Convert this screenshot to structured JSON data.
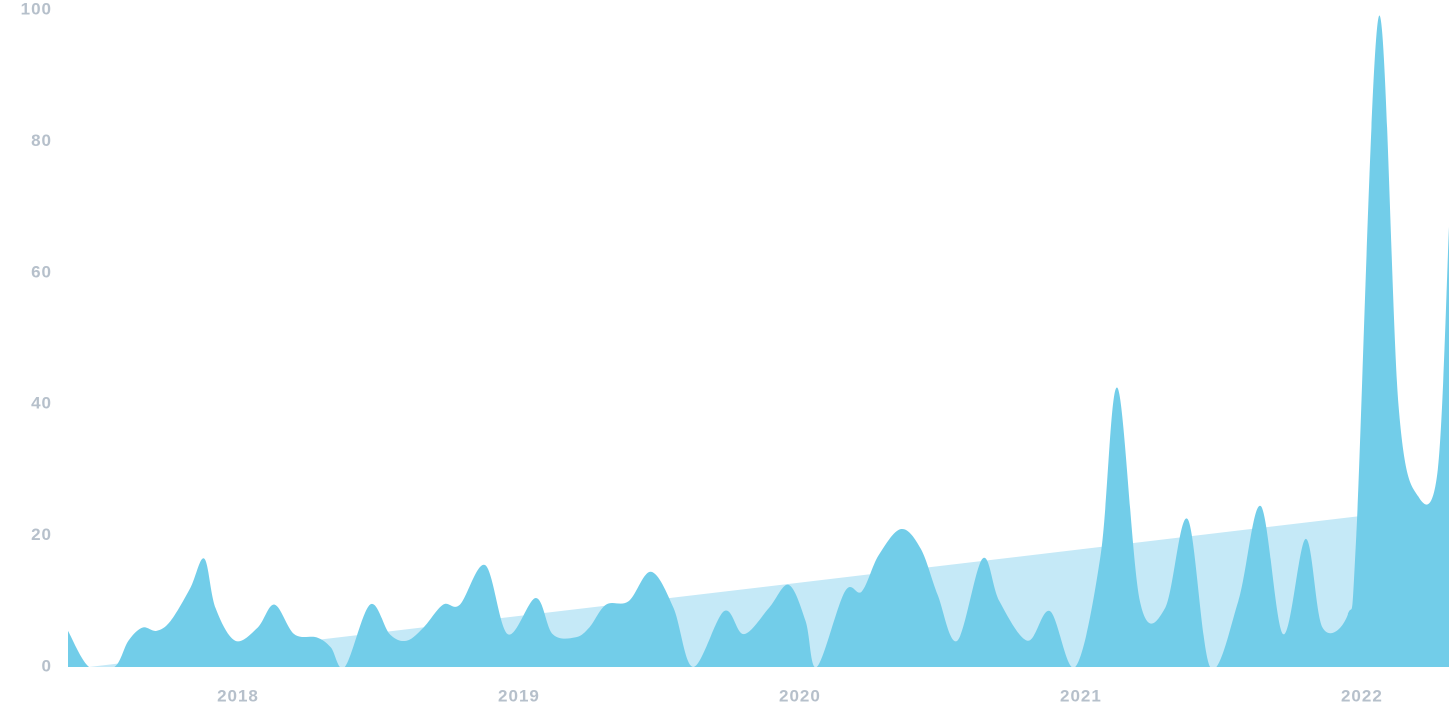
{
  "chart_data": {
    "type": "area",
    "x": [
      2017.395,
      2017.47,
      2017.56,
      2017.61,
      2017.66,
      2017.71,
      2017.76,
      2017.83,
      2017.88,
      2017.92,
      2017.99,
      2018.07,
      2018.13,
      2018.2,
      2018.28,
      2018.33,
      2018.38,
      2018.47,
      2018.54,
      2018.6,
      2018.66,
      2018.73,
      2018.79,
      2018.88,
      2018.96,
      2019.06,
      2019.12,
      2019.2,
      2019.25,
      2019.31,
      2019.39,
      2019.47,
      2019.55,
      2019.62,
      2019.73,
      2019.8,
      2019.89,
      2019.96,
      2020.02,
      2020.06,
      2020.16,
      2020.22,
      2020.28,
      2020.36,
      2020.43,
      2020.49,
      2020.56,
      2020.65,
      2020.71,
      2020.81,
      2020.89,
      2020.98,
      2021.07,
      2021.13,
      2021.21,
      2021.3,
      2021.38,
      2021.46,
      2021.56,
      2021.64,
      2021.72,
      2021.8,
      2021.86,
      2021.95,
      2021.98,
      2022.06,
      2022.13,
      2022.2,
      2022.27,
      2022.31
    ],
    "values": [
      5.5,
      0,
      0,
      4,
      6,
      5.5,
      7,
      12,
      16.5,
      9,
      4,
      6,
      9.5,
      5,
      4.5,
      3,
      0,
      9.5,
      5,
      4,
      6,
      9.5,
      9.5,
      15.5,
      5,
      10.5,
      5,
      4.5,
      6,
      9.5,
      10,
      14.5,
      9,
      0,
      8.5,
      5,
      9,
      12.5,
      7,
      0,
      11.5,
      11.5,
      17,
      21,
      18,
      11,
      4,
      16.5,
      10,
      4,
      8.5,
      0,
      17,
      42.5,
      10,
      9,
      22.5,
      0,
      10,
      24.5,
      5,
      19.5,
      6,
      8,
      20,
      99,
      40,
      26,
      30,
      67
    ],
    "color": "#72cde9",
    "trend": {
      "x": [
        2017.47,
        2022.0
      ],
      "values": [
        0,
        23
      ],
      "color": "#c5e9f7"
    },
    "xlim": [
      2017.395,
      2022.31
    ],
    "xticks": [
      2018,
      2019,
      2020,
      2021,
      2022
    ],
    "ylim": [
      0,
      100
    ],
    "yticks": [
      0,
      20,
      40,
      60,
      80,
      100
    ]
  }
}
